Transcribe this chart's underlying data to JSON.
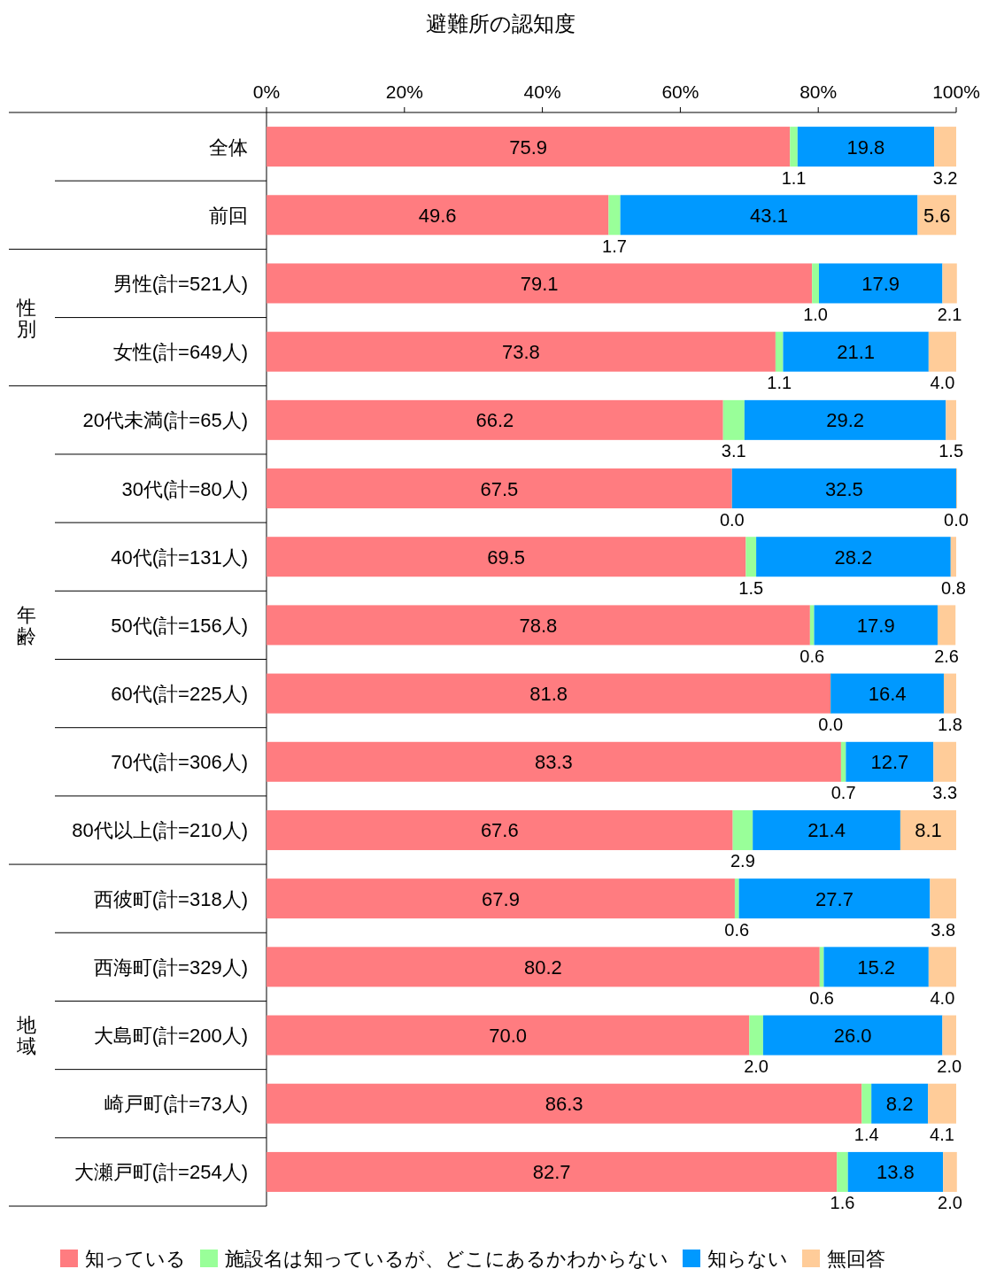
{
  "chart_data": {
    "type": "bar",
    "orientation": "horizontal",
    "stacked": true,
    "title": "避難所の認知度",
    "categories": [
      "全体",
      "前回",
      "男性(計=521人)",
      "女性(計=649人)",
      "20代未満(計=65人)",
      "30代(計=80人)",
      "40代(計=131人)",
      "50代(計=156人)",
      "60代(計=225人)",
      "70代(計=306人)",
      "80代以上(計=210人)",
      "西彼町(計=318人)",
      "西海町(計=329人)",
      "大島町(計=200人)",
      "崎戸町(計=73人)",
      "大瀬戸町(計=254人)"
    ],
    "series": [
      {
        "name": "知っている",
        "color": "#ff7c80",
        "values": [
          75.9,
          49.6,
          79.1,
          73.8,
          66.2,
          67.5,
          69.5,
          78.8,
          81.8,
          83.3,
          67.6,
          67.9,
          80.2,
          70.0,
          86.3,
          82.7
        ],
        "value_labels": [
          "75.9",
          "49.6",
          "79.1",
          "73.8",
          "66.2",
          "67.5",
          "69.5",
          "78.8",
          "81.8",
          "83.3",
          "67.6",
          "67.9",
          "80.2",
          "70.0",
          "86.3",
          "82.7"
        ]
      },
      {
        "name": "施設名は知っているが、どこにあるかわからない",
        "color": "#99ff99",
        "values": [
          1.1,
          1.7,
          1.0,
          1.1,
          3.1,
          0.0,
          1.5,
          0.6,
          0.0,
          0.7,
          2.9,
          0.6,
          0.6,
          2.0,
          1.4,
          1.6
        ],
        "value_labels": [
          "1.1",
          "1.7",
          "1.0",
          "1.1",
          "3.1",
          "0.0",
          "1.5",
          "0.6",
          "0.0",
          "0.7",
          "2.9",
          "0.6",
          "0.6",
          "2.0",
          "1.4",
          "1.6"
        ]
      },
      {
        "name": "知らない",
        "color": "#0099ff",
        "values": [
          19.8,
          43.1,
          17.9,
          21.1,
          29.2,
          32.5,
          28.2,
          17.9,
          16.4,
          12.7,
          21.4,
          27.7,
          15.2,
          26.0,
          8.2,
          13.8
        ],
        "value_labels": [
          "19.8",
          "43.1",
          "17.9",
          "21.1",
          "29.2",
          "32.5",
          "28.2",
          "17.9",
          "16.4",
          "12.7",
          "21.4",
          "27.7",
          "15.2",
          "26.0",
          "8.2",
          "13.8"
        ]
      },
      {
        "name": "無回答",
        "color": "#ffcc99",
        "values": [
          3.2,
          5.6,
          2.1,
          4.0,
          1.5,
          0.0,
          0.8,
          2.6,
          1.8,
          3.3,
          8.1,
          3.8,
          4.0,
          2.0,
          4.1,
          2.0
        ],
        "value_labels": [
          "3.2",
          "5.6",
          "2.1",
          "4.0",
          "1.5",
          "0.0",
          "0.8",
          "2.6",
          "1.8",
          "3.3",
          "8.1",
          "3.8",
          "4.0",
          "2.0",
          "4.1",
          "2.0"
        ]
      }
    ],
    "xlim": [
      0,
      100
    ],
    "xticks": [
      {
        "value": 0,
        "label": "0%"
      },
      {
        "value": 20,
        "label": "20%"
      },
      {
        "value": 40,
        "label": "40%"
      },
      {
        "value": 60,
        "label": "60%"
      },
      {
        "value": 80,
        "label": "80%"
      },
      {
        "value": 100,
        "label": "100%"
      }
    ],
    "annotations": [
      "性別",
      "年齢",
      "地域"
    ],
    "legend": "bottom"
  }
}
